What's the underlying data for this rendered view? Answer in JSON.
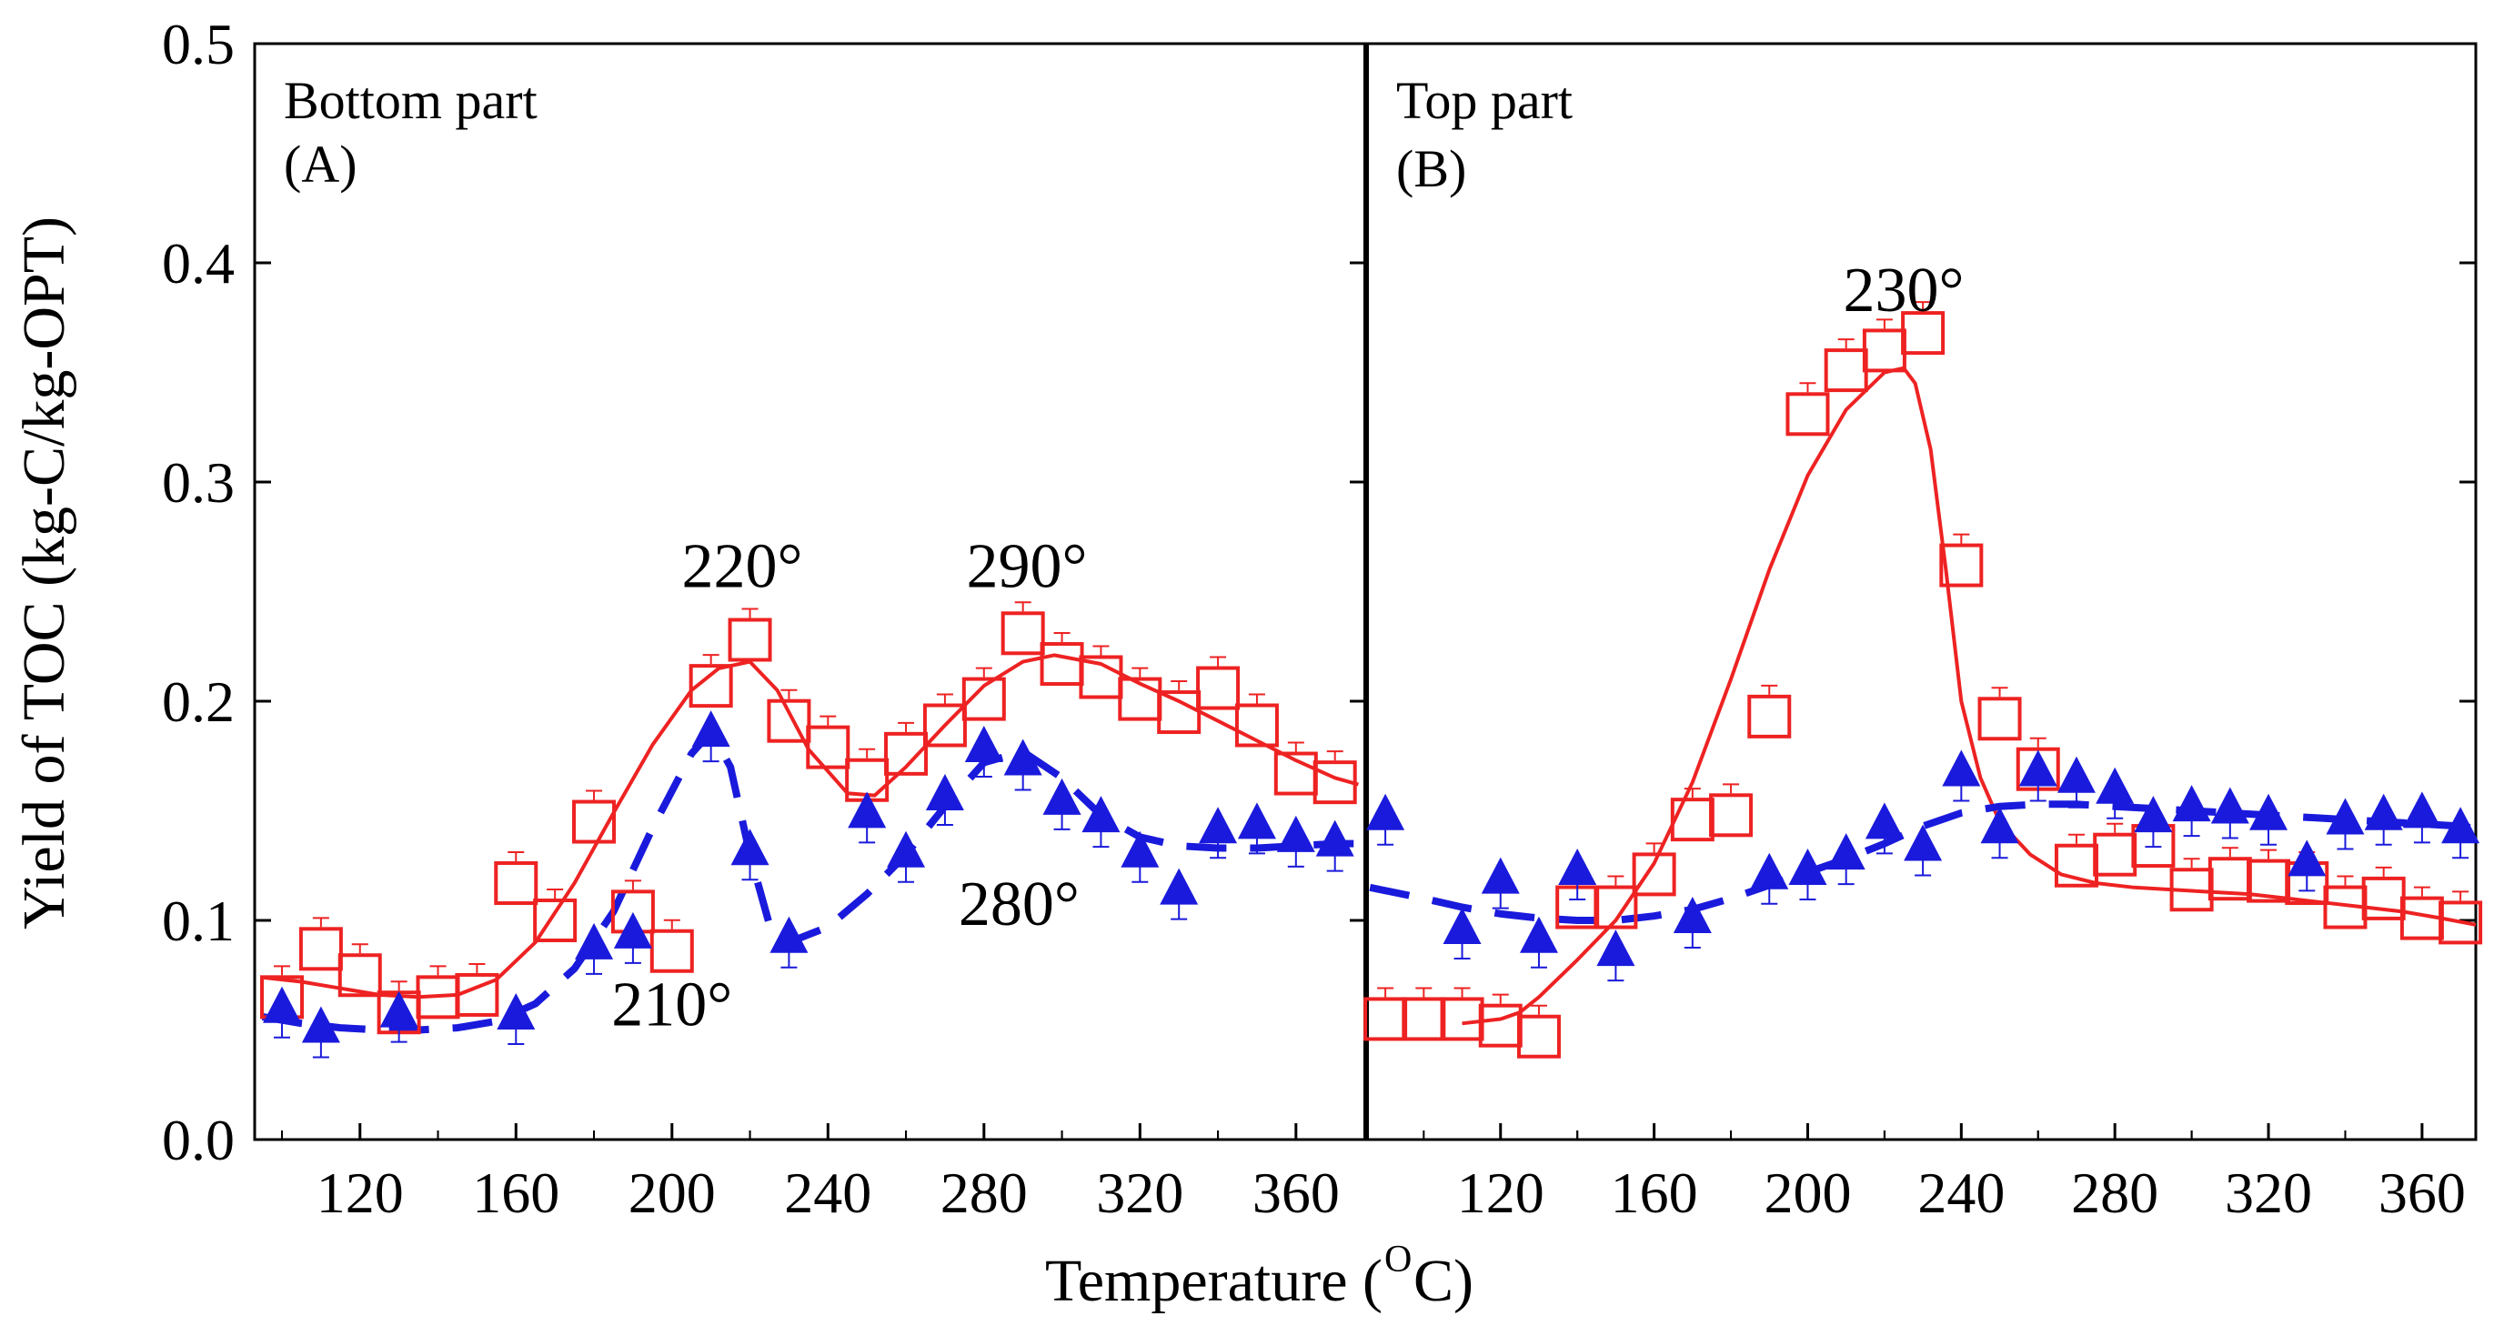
{
  "chart_data": {
    "type": "scatter",
    "xlabel_main": "Temperature (",
    "xlabel_sup": "O",
    "xlabel_tail": "C)",
    "ylabel": "Yield of TOC (kg-C/kg-OPT)",
    "ylim": [
      0.0,
      0.5
    ],
    "yticks": [
      "0.0",
      "0.1",
      "0.2",
      "0.3",
      "0.4",
      "0.5"
    ],
    "colors": {
      "red": "#ee2222",
      "blue": "#1a1adc"
    },
    "panels": [
      {
        "title": "Bottom part",
        "label": "(A)",
        "xlim": [
          93,
          378
        ],
        "xticks": [
          120,
          160,
          200,
          240,
          280,
          320,
          360
        ],
        "series": [
          {
            "name": "red-squares",
            "marker": "square",
            "x": [
              100,
              110,
              120,
              130,
              140,
              150,
              160,
              170,
              180,
              190,
              200,
              210,
              220,
              230,
              240,
              250,
              260,
              270,
              280,
              290,
              300,
              310,
              320,
              330,
              340,
              350,
              360,
              370
            ],
            "y": [
              0.065,
              0.087,
              0.075,
              0.058,
              0.065,
              0.066,
              0.117,
              0.1,
              0.145,
              0.104,
              0.086,
              0.207,
              0.228,
              0.191,
              0.179,
              0.164,
              0.176,
              0.189,
              0.201,
              0.231,
              0.217,
              0.211,
              0.201,
              0.195,
              0.206,
              0.189,
              0.167,
              0.163
            ],
            "fit_x": [
              95,
              105,
              115,
              125,
              135,
              145,
              155,
              165,
              175,
              185,
              195,
              205,
              212,
              220,
              227,
              235,
              245,
              252,
              260,
              270,
              280,
              290,
              298,
              310,
              320,
              330,
              340,
              350,
              360,
              370,
              376
            ],
            "fit_y": [
              0.074,
              0.072,
              0.069,
              0.066,
              0.065,
              0.066,
              0.073,
              0.09,
              0.117,
              0.149,
              0.18,
              0.205,
              0.215,
              0.218,
              0.205,
              0.178,
              0.158,
              0.157,
              0.17,
              0.189,
              0.207,
              0.218,
              0.221,
              0.217,
              0.208,
              0.2,
              0.191,
              0.182,
              0.173,
              0.165,
              0.162
            ]
          },
          {
            "name": "blue-triangles",
            "marker": "triangle",
            "x": [
              100,
              110,
              130,
              160,
              180,
              190,
              210,
              220,
              230,
              250,
              260,
              270,
              280,
              290,
              300,
              310,
              320,
              330,
              340,
              350,
              360,
              370
            ],
            "y": [
              0.059,
              0.05,
              0.057,
              0.056,
              0.088,
              0.093,
              0.185,
              0.131,
              0.091,
              0.148,
              0.13,
              0.156,
              0.178,
              0.172,
              0.154,
              0.146,
              0.13,
              0.113,
              0.141,
              0.143,
              0.137,
              0.135
            ],
            "fit_x": [
              95,
              105,
              115,
              125,
              135,
              145,
              155,
              165,
              175,
              185,
              195,
              205,
              210,
              215,
              220,
              225,
              230,
              240,
              250,
              260,
              270,
              280,
              290,
              300,
              310,
              320,
              330,
              340,
              350,
              360,
              370,
              376
            ],
            "fit_y": [
              0.056,
              0.053,
              0.051,
              0.05,
              0.05,
              0.051,
              0.054,
              0.062,
              0.078,
              0.104,
              0.142,
              0.176,
              0.186,
              0.17,
              0.13,
              0.098,
              0.09,
              0.097,
              0.112,
              0.13,
              0.152,
              0.172,
              0.177,
              0.165,
              0.148,
              0.138,
              0.134,
              0.133,
              0.133,
              0.134,
              0.135,
              0.135
            ]
          }
        ],
        "annotations": [
          {
            "text": "220°",
            "x": 218,
            "y": 0.252
          },
          {
            "text": "290°",
            "x": 291,
            "y": 0.252
          },
          {
            "text": "210°",
            "x": 200,
            "y": 0.052
          },
          {
            "text": "280°",
            "x": 289,
            "y": 0.098
          }
        ]
      },
      {
        "title": "Top part",
        "label": "(B)",
        "xlim": [
          85,
          374
        ],
        "xticks": [
          120,
          160,
          200,
          240,
          280,
          320,
          360
        ],
        "series": [
          {
            "name": "red-squares",
            "marker": "square",
            "x": [
              90,
              100,
              110,
              120,
              130,
              140,
              150,
              160,
              170,
              180,
              190,
              200,
              210,
              220,
              230,
              240,
              250,
              260,
              270,
              280,
              290,
              300,
              310,
              320,
              330,
              340,
              350,
              360,
              370
            ],
            "y": [
              0.055,
              0.055,
              0.055,
              0.052,
              0.047,
              0.106,
              0.106,
              0.121,
              0.146,
              0.148,
              0.193,
              0.331,
              0.351,
              0.36,
              0.368,
              0.262,
              0.192,
              0.169,
              0.125,
              0.13,
              0.134,
              0.114,
              0.119,
              0.118,
              0.117,
              0.106,
              0.11,
              0.101,
              0.099
            ],
            "fit_x": [
              110,
              120,
              125,
              130,
              140,
              150,
              160,
              170,
              180,
              190,
              200,
              210,
              220,
              225,
              228,
              232,
              236,
              240,
              245,
              250,
              258,
              266,
              275,
              285,
              295,
              305,
              315,
              325,
              335,
              345,
              355,
              365,
              374
            ],
            "fit_y": [
              0.053,
              0.055,
              0.058,
              0.065,
              0.082,
              0.1,
              0.126,
              0.163,
              0.21,
              0.26,
              0.303,
              0.333,
              0.35,
              0.352,
              0.345,
              0.315,
              0.26,
              0.2,
              0.165,
              0.145,
              0.13,
              0.121,
              0.117,
              0.115,
              0.114,
              0.113,
              0.112,
              0.11,
              0.108,
              0.106,
              0.104,
              0.101,
              0.098
            ]
          },
          {
            "name": "blue-triangles",
            "marker": "triangle",
            "x": [
              90,
              110,
              120,
              130,
              140,
              150,
              170,
              190,
              200,
              210,
              220,
              230,
              240,
              250,
              260,
              270,
              280,
              290,
              300,
              310,
              320,
              330,
              340,
              350,
              360,
              370
            ],
            "y": [
              0.147,
              0.095,
              0.118,
              0.091,
              0.122,
              0.085,
              0.1,
              0.12,
              0.122,
              0.129,
              0.143,
              0.133,
              0.167,
              0.141,
              0.167,
              0.164,
              0.159,
              0.146,
              0.151,
              0.15,
              0.147,
              0.126,
              0.145,
              0.147,
              0.148,
              0.141
            ],
            "fit_x": [
              86,
              100,
              110,
              120,
              130,
              140,
              150,
              160,
              170,
              180,
              190,
              200,
              210,
              220,
              230,
              240,
              250,
              260,
              270,
              280,
              290,
              300,
              310,
              320,
              330,
              340,
              350,
              360,
              370,
              374
            ],
            "fit_y": [
              0.115,
              0.11,
              0.106,
              0.103,
              0.101,
              0.1,
              0.1,
              0.102,
              0.105,
              0.11,
              0.116,
              0.122,
              0.128,
              0.135,
              0.143,
              0.149,
              0.152,
              0.153,
              0.153,
              0.152,
              0.151,
              0.15,
              0.149,
              0.148,
              0.147,
              0.146,
              0.145,
              0.144,
              0.143,
              0.142
            ]
          }
        ],
        "annotations": [
          {
            "text": "230°",
            "x": 225,
            "y": 0.378
          }
        ]
      }
    ]
  }
}
